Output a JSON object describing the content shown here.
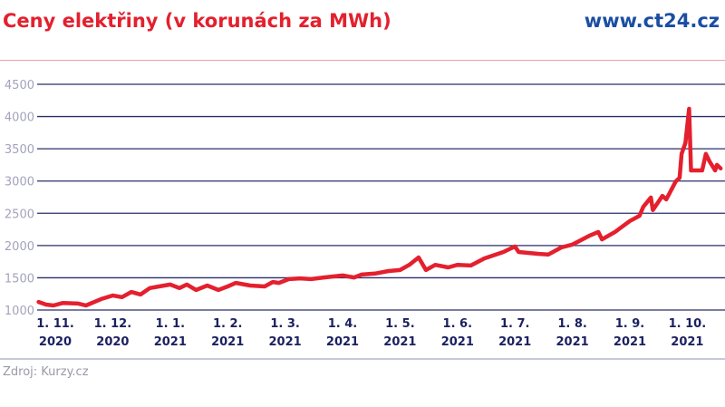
{
  "header": {
    "title": "Ceny elektřiny (v korunách za MWh)",
    "site": "www.ct24.cz"
  },
  "footer": {
    "source": "Zdroj: Kurzy.cz"
  },
  "colors": {
    "title": "#e4202e",
    "site": "#1b4ea3",
    "line": "#e4202e",
    "grid": "#2a2f6b"
  },
  "chart_data": {
    "type": "line",
    "title": "Ceny elektřiny (v korunách za MWh)",
    "xlabel": "",
    "ylabel": "",
    "ylim": [
      1000,
      4500
    ],
    "yticks": [
      "1000",
      "1500",
      "2000",
      "2500",
      "3000",
      "3500",
      "4000",
      "4500"
    ],
    "xticks": [
      {
        "date": "2020-11-01",
        "line1": "1. 11.",
        "line2": "2020"
      },
      {
        "date": "2020-12-01",
        "line1": "1. 12.",
        "line2": "2020"
      },
      {
        "date": "2021-01-01",
        "line1": "1. 1.",
        "line2": "2021"
      },
      {
        "date": "2021-02-01",
        "line1": "1. 2.",
        "line2": "2021"
      },
      {
        "date": "2021-03-01",
        "line1": "1. 3.",
        "line2": "2021"
      },
      {
        "date": "2021-04-01",
        "line1": "1. 4.",
        "line2": "2021"
      },
      {
        "date": "2021-05-01",
        "line1": "1. 5.",
        "line2": "2021"
      },
      {
        "date": "2021-06-01",
        "line1": "1. 6.",
        "line2": "2021"
      },
      {
        "date": "2021-07-01",
        "line1": "1. 7.",
        "line2": "2021"
      },
      {
        "date": "2021-08-01",
        "line1": "1. 8.",
        "line2": "2021"
      },
      {
        "date": "2021-09-01",
        "line1": "1. 9.",
        "line2": "2021"
      },
      {
        "date": "2021-10-01",
        "line1": "1. 10.",
        "line2": "2021"
      }
    ],
    "grid": true,
    "series": [
      {
        "points": [
          [
            "2020-10-23",
            1125
          ],
          [
            "2020-10-27",
            1085
          ],
          [
            "2020-10-31",
            1070
          ],
          [
            "2020-11-05",
            1110
          ],
          [
            "2020-11-13",
            1100
          ],
          [
            "2020-11-17",
            1070
          ],
          [
            "2020-11-25",
            1170
          ],
          [
            "2020-12-01",
            1225
          ],
          [
            "2020-12-06",
            1200
          ],
          [
            "2020-12-11",
            1280
          ],
          [
            "2020-12-16",
            1240
          ],
          [
            "2020-12-21",
            1340
          ],
          [
            "2020-12-26",
            1365
          ],
          [
            "2021-01-01",
            1395
          ],
          [
            "2021-01-06",
            1340
          ],
          [
            "2021-01-10",
            1395
          ],
          [
            "2021-01-15",
            1310
          ],
          [
            "2021-01-21",
            1380
          ],
          [
            "2021-01-27",
            1310
          ],
          [
            "2021-02-01",
            1365
          ],
          [
            "2021-02-05",
            1420
          ],
          [
            "2021-02-12",
            1380
          ],
          [
            "2021-02-19",
            1365
          ],
          [
            "2021-02-23",
            1435
          ],
          [
            "2021-02-26",
            1420
          ],
          [
            "2021-03-03",
            1480
          ],
          [
            "2021-03-09",
            1490
          ],
          [
            "2021-03-15",
            1480
          ],
          [
            "2021-03-22",
            1505
          ],
          [
            "2021-04-01",
            1535
          ],
          [
            "2021-04-07",
            1505
          ],
          [
            "2021-04-11",
            1550
          ],
          [
            "2021-04-18",
            1565
          ],
          [
            "2021-04-25",
            1605
          ],
          [
            "2021-05-01",
            1620
          ],
          [
            "2021-05-06",
            1700
          ],
          [
            "2021-05-11",
            1815
          ],
          [
            "2021-05-15",
            1620
          ],
          [
            "2021-05-20",
            1700
          ],
          [
            "2021-05-27",
            1660
          ],
          [
            "2021-06-01",
            1700
          ],
          [
            "2021-06-08",
            1690
          ],
          [
            "2021-06-15",
            1800
          ],
          [
            "2021-06-25",
            1900
          ],
          [
            "2021-07-01",
            1985
          ],
          [
            "2021-07-03",
            1900
          ],
          [
            "2021-07-14",
            1870
          ],
          [
            "2021-07-19",
            1860
          ],
          [
            "2021-07-26",
            1970
          ],
          [
            "2021-08-01",
            2015
          ],
          [
            "2021-08-10",
            2150
          ],
          [
            "2021-08-15",
            2210
          ],
          [
            "2021-08-17",
            2095
          ],
          [
            "2021-08-24",
            2210
          ],
          [
            "2021-09-01",
            2380
          ],
          [
            "2021-09-06",
            2460
          ],
          [
            "2021-09-08",
            2600
          ],
          [
            "2021-09-12",
            2745
          ],
          [
            "2021-09-13",
            2550
          ],
          [
            "2021-09-18",
            2770
          ],
          [
            "2021-09-20",
            2715
          ],
          [
            "2021-09-25",
            2995
          ],
          [
            "2021-09-27",
            3050
          ],
          [
            "2021-09-28",
            3420
          ],
          [
            "2021-09-30",
            3590
          ],
          [
            "2021-10-02",
            4120
          ],
          [
            "2021-10-03",
            3165
          ],
          [
            "2021-10-09",
            3165
          ],
          [
            "2021-10-11",
            3420
          ],
          [
            "2021-10-13",
            3305
          ],
          [
            "2021-10-16",
            3165
          ],
          [
            "2021-10-17",
            3250
          ],
          [
            "2021-10-19",
            3195
          ]
        ]
      }
    ]
  }
}
